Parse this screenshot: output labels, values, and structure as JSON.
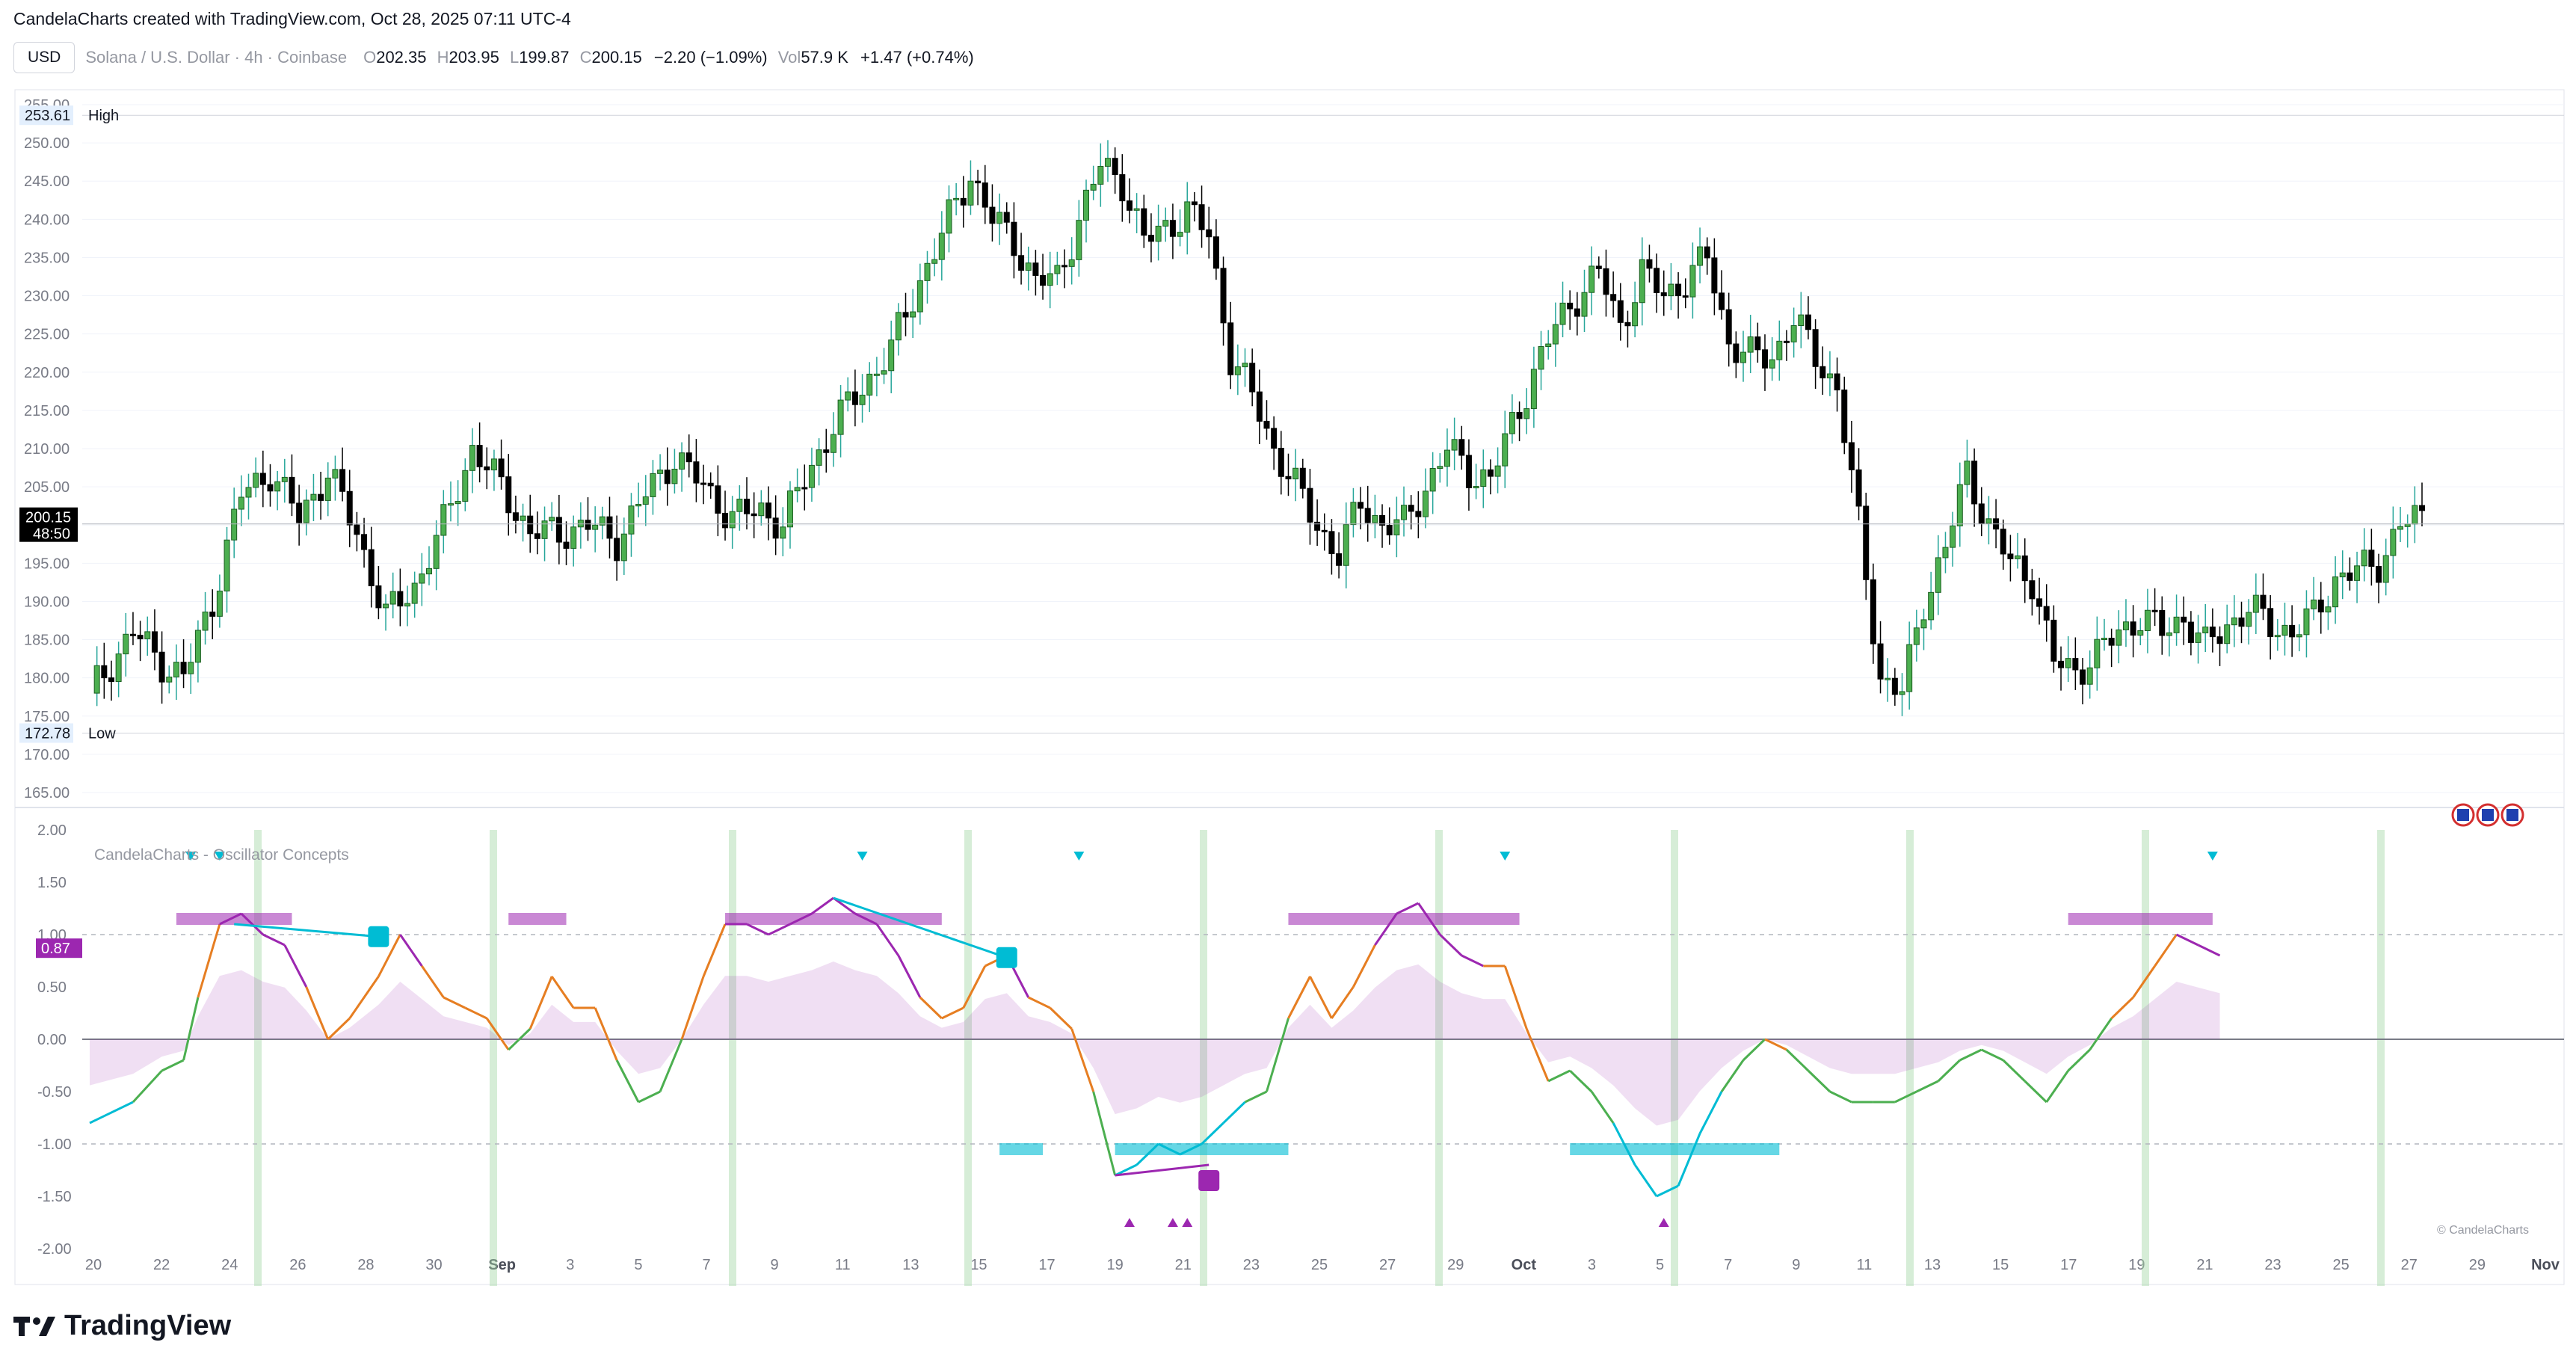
{
  "header": {
    "caption": "CandelaCharts created with TradingView.com, Oct 28, 2025 07:11 UTC-4"
  },
  "toolbar": {
    "currency_button": "USD",
    "symbol": "Solana / U.S. Dollar · 4h · Coinbase",
    "o_label": "O",
    "o_value": "202.35",
    "h_label": "H",
    "h_value": "203.95",
    "l_label": "L",
    "l_value": "199.87",
    "c_label": "C",
    "c_value": "200.15",
    "change": "−2.20 (−1.09%)",
    "vol_label": "Vol",
    "vol_value": "57.9 K",
    "vol_change": "+1.47 (+0.74%)"
  },
  "price_pane": {
    "high_value": "253.61",
    "high_label": "High",
    "low_value": "172.78",
    "low_label": "Low",
    "last_price": "200.15",
    "countdown": "48:50"
  },
  "indicator": {
    "title": "CandelaCharts - Oscillator Concepts",
    "current_value": "0.87",
    "watermark": "© CandelaCharts"
  },
  "footer": {
    "brand": "TradingView"
  },
  "colors": {
    "bull": "#26a69a",
    "bull_fill": "#4caf50",
    "bear": "#000000",
    "purple": "#9c27b0",
    "cyan": "#00bcd4",
    "orange": "#e67e22",
    "grid": "#f0f3fa",
    "green_band": "#a5d6a7"
  },
  "chart_data": [
    {
      "type": "candlestick",
      "title": "Solana / U.S. Dollar · 4h · Coinbase",
      "x_ticks": [
        "20",
        "22",
        "24",
        "26",
        "28",
        "30",
        "Sep",
        "3",
        "5",
        "7",
        "9",
        "11",
        "13",
        "15",
        "17",
        "19",
        "21",
        "23",
        "25",
        "27",
        "29",
        "Oct",
        "3",
        "5",
        "7",
        "9",
        "11",
        "13",
        "15",
        "17",
        "19",
        "21",
        "23",
        "25",
        "27",
        "29",
        "Nov"
      ],
      "y_ticks": [
        165,
        170,
        175,
        180,
        185,
        190,
        195,
        200,
        205,
        210,
        215,
        220,
        225,
        230,
        235,
        240,
        245,
        250,
        255
      ],
      "ylim": [
        165,
        255
      ],
      "close_path": [
        [
          0,
          178
        ],
        [
          6,
          186
        ],
        [
          10,
          182
        ],
        [
          13,
          180
        ],
        [
          17,
          190
        ],
        [
          21,
          204
        ],
        [
          25,
          207
        ],
        [
          29,
          201
        ],
        [
          33,
          207
        ],
        [
          37,
          199
        ],
        [
          41,
          188
        ],
        [
          45,
          192
        ],
        [
          49,
          200
        ],
        [
          53,
          210
        ],
        [
          57,
          205
        ],
        [
          61,
          199
        ],
        [
          65,
          199
        ],
        [
          69,
          200
        ],
        [
          73,
          198
        ],
        [
          77,
          204
        ],
        [
          81,
          209
        ],
        [
          85,
          205
        ],
        [
          89,
          201
        ],
        [
          93,
          202
        ],
        [
          96,
          200
        ],
        [
          99,
          206
        ],
        [
          103,
          213
        ],
        [
          107,
          218
        ],
        [
          111,
          223
        ],
        [
          115,
          232
        ],
        [
          119,
          240
        ],
        [
          122,
          246
        ],
        [
          125,
          240
        ],
        [
          128,
          237
        ],
        [
          131,
          232
        ],
        [
          134,
          232
        ],
        [
          137,
          240
        ],
        [
          140,
          247
        ],
        [
          143,
          245
        ],
        [
          146,
          237
        ],
        [
          149,
          239
        ],
        [
          152,
          241
        ],
        [
          155,
          238
        ],
        [
          158,
          222
        ],
        [
          161,
          217
        ],
        [
          164,
          210
        ],
        [
          167,
          205
        ],
        [
          170,
          200
        ],
        [
          173,
          196
        ],
        [
          176,
          203
        ],
        [
          179,
          200
        ],
        [
          182,
          200
        ],
        [
          185,
          205
        ],
        [
          188,
          210
        ],
        [
          191,
          207
        ],
        [
          194,
          206
        ],
        [
          197,
          213
        ],
        [
          200,
          220
        ],
        [
          203,
          226
        ],
        [
          206,
          230
        ],
        [
          209,
          233
        ],
        [
          212,
          226
        ],
        [
          215,
          233
        ],
        [
          218,
          230
        ],
        [
          221,
          232
        ],
        [
          224,
          235
        ],
        [
          227,
          224
        ],
        [
          230,
          222
        ],
        [
          233,
          222
        ],
        [
          236,
          227
        ],
        [
          239,
          222
        ],
        [
          242,
          218
        ],
        [
          245,
          200
        ],
        [
          248,
          180
        ],
        [
          251,
          178
        ],
        [
          254,
          190
        ],
        [
          257,
          197
        ],
        [
          260,
          207
        ],
        [
          263,
          200
        ],
        [
          266,
          195
        ],
        [
          269,
          193
        ],
        [
          272,
          182
        ],
        [
          275,
          181
        ],
        [
          278,
          183
        ],
        [
          281,
          186
        ],
        [
          284,
          188
        ],
        [
          287,
          186
        ],
        [
          290,
          188
        ],
        [
          293,
          184
        ],
        [
          296,
          187
        ],
        [
          299,
          189
        ],
        [
          302,
          187
        ],
        [
          305,
          186
        ],
        [
          308,
          188
        ],
        [
          311,
          193
        ],
        [
          314,
          194
        ],
        [
          317,
          195
        ],
        [
          320,
          200
        ],
        [
          323,
          201
        ]
      ],
      "x_domain": [
        0,
        323
      ],
      "annotations": [
        "High 253.61",
        "Low 172.78",
        "Last 200.15"
      ]
    },
    {
      "type": "line",
      "title": "CandelaCharts - Oscillator Concepts",
      "y_ticks": [
        -2.0,
        -1.5,
        -1.0,
        -0.5,
        0.0,
        0.5,
        1.0,
        1.5,
        2.0
      ],
      "ylim": [
        -2.0,
        2.0
      ],
      "reference_lines": [
        1.0,
        0.0,
        -1.0
      ],
      "oscillator_path": [
        [
          0,
          -0.8
        ],
        [
          6,
          -0.6
        ],
        [
          10,
          -0.3
        ],
        [
          13,
          -0.2
        ],
        [
          15,
          0.4
        ],
        [
          18,
          1.1
        ],
        [
          21,
          1.2
        ],
        [
          24,
          1.0
        ],
        [
          27,
          0.9
        ],
        [
          30,
          0.5
        ],
        [
          33,
          0.0
        ],
        [
          36,
          0.2
        ],
        [
          40,
          0.6
        ],
        [
          43,
          1.0
        ],
        [
          46,
          0.7
        ],
        [
          49,
          0.4
        ],
        [
          52,
          0.3
        ],
        [
          55,
          0.2
        ],
        [
          58,
          -0.1
        ],
        [
          61,
          0.1
        ],
        [
          64,
          0.6
        ],
        [
          67,
          0.3
        ],
        [
          70,
          0.3
        ],
        [
          73,
          -0.2
        ],
        [
          76,
          -0.6
        ],
        [
          79,
          -0.5
        ],
        [
          82,
          0.0
        ],
        [
          85,
          0.6
        ],
        [
          88,
          1.1
        ],
        [
          91,
          1.1
        ],
        [
          94,
          1.0
        ],
        [
          97,
          1.1
        ],
        [
          100,
          1.2
        ],
        [
          103,
          1.35
        ],
        [
          106,
          1.2
        ],
        [
          109,
          1.1
        ],
        [
          112,
          0.8
        ],
        [
          115,
          0.4
        ],
        [
          118,
          0.2
        ],
        [
          121,
          0.3
        ],
        [
          124,
          0.7
        ],
        [
          127,
          0.8
        ],
        [
          130,
          0.4
        ],
        [
          133,
          0.3
        ],
        [
          136,
          0.1
        ],
        [
          139,
          -0.5
        ],
        [
          142,
          -1.3
        ],
        [
          145,
          -1.2
        ],
        [
          148,
          -1.0
        ],
        [
          151,
          -1.1
        ],
        [
          154,
          -1.0
        ],
        [
          157,
          -0.8
        ],
        [
          160,
          -0.6
        ],
        [
          163,
          -0.5
        ],
        [
          166,
          0.2
        ],
        [
          169,
          0.6
        ],
        [
          172,
          0.2
        ],
        [
          175,
          0.5
        ],
        [
          178,
          0.9
        ],
        [
          181,
          1.2
        ],
        [
          184,
          1.3
        ],
        [
          187,
          1.0
        ],
        [
          190,
          0.8
        ],
        [
          193,
          0.7
        ],
        [
          196,
          0.7
        ],
        [
          199,
          0.1
        ],
        [
          202,
          -0.4
        ],
        [
          205,
          -0.3
        ],
        [
          208,
          -0.5
        ],
        [
          211,
          -0.8
        ],
        [
          214,
          -1.2
        ],
        [
          217,
          -1.5
        ],
        [
          220,
          -1.4
        ],
        [
          223,
          -0.9
        ],
        [
          226,
          -0.5
        ],
        [
          229,
          -0.2
        ],
        [
          232,
          0.0
        ],
        [
          235,
          -0.1
        ],
        [
          238,
          -0.3
        ],
        [
          241,
          -0.5
        ],
        [
          244,
          -0.6
        ],
        [
          247,
          -0.6
        ],
        [
          250,
          -0.6
        ],
        [
          253,
          -0.5
        ],
        [
          256,
          -0.4
        ],
        [
          259,
          -0.2
        ],
        [
          262,
          -0.1
        ],
        [
          265,
          -0.2
        ],
        [
          268,
          -0.4
        ],
        [
          271,
          -0.6
        ],
        [
          274,
          -0.3
        ],
        [
          277,
          -0.1
        ],
        [
          280,
          0.2
        ],
        [
          283,
          0.4
        ],
        [
          286,
          0.7
        ],
        [
          289,
          1.0
        ],
        [
          292,
          0.9
        ],
        [
          295,
          0.8
        ]
      ],
      "x_domain": [
        0,
        323
      ]
    }
  ]
}
